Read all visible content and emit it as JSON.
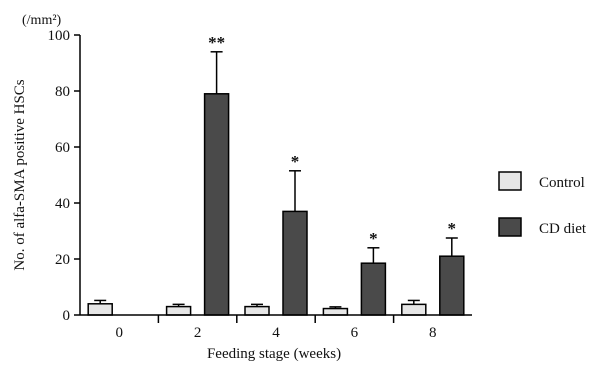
{
  "chart_data": {
    "type": "bar",
    "ylabel": "No. of alfa-SMA positive HSCs",
    "xlabel": "Feeding stage (weeks)",
    "y_unit": "(/mm²)",
    "ylim": [
      0,
      100
    ],
    "yticks": [
      0,
      20,
      40,
      60,
      80,
      100
    ],
    "categories": [
      "0",
      "2",
      "4",
      "6",
      "8"
    ],
    "series": [
      {
        "name": "Control",
        "color": "#e6e6e6",
        "values": [
          4,
          3,
          3,
          2.3,
          3.8
        ],
        "errors": [
          1.2,
          0.8,
          0.8,
          0.6,
          1.4
        ]
      },
      {
        "name": "CD diet",
        "color": "#4a4a4a",
        "values": [
          null,
          79,
          37,
          18.5,
          21
        ],
        "errors": [
          null,
          15,
          14.5,
          5.5,
          6.5
        ]
      }
    ],
    "significance": [
      "",
      "**",
      "*",
      "*",
      "*"
    ],
    "legend_position": "right",
    "grid": false
  }
}
